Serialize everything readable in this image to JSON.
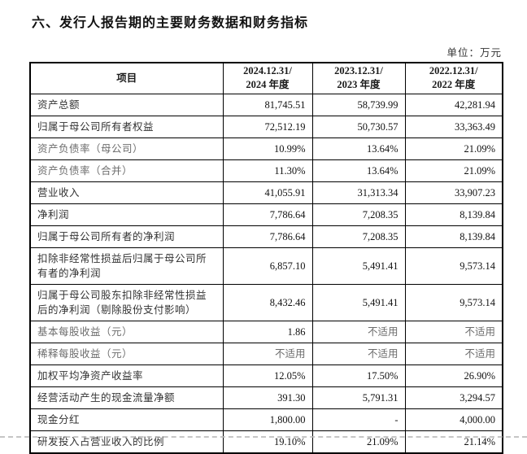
{
  "page": {
    "title": "六、发行人报告期的主要财务数据和财务指标",
    "unit_label": "单位：万元"
  },
  "table": {
    "header": {
      "item_label": "项目",
      "periods": [
        {
          "line1": "2024.12.31/",
          "line2": "2024 年度"
        },
        {
          "line1": "2023.12.31/",
          "line2": "2023 年度"
        },
        {
          "line1": "2022.12.31/",
          "line2": "2022 年度"
        }
      ]
    },
    "rows": [
      {
        "label": "资产总额",
        "values": [
          "81,745.51",
          "58,739.99",
          "42,281.94"
        ]
      },
      {
        "label": "归属于母公司所有者权益",
        "values": [
          "72,512.19",
          "50,730.57",
          "33,363.49"
        ]
      },
      {
        "label": "资产负债率（母公司）",
        "values": [
          "10.99%",
          "13.64%",
          "21.09%"
        ]
      },
      {
        "label": "资产负债率（合并）",
        "values": [
          "11.30%",
          "13.64%",
          "21.09%"
        ]
      },
      {
        "label": "营业收入",
        "values": [
          "41,055.91",
          "31,313.34",
          "33,907.23"
        ]
      },
      {
        "label": "净利润",
        "values": [
          "7,786.64",
          "7,208.35",
          "8,139.84"
        ]
      },
      {
        "label": "归属于母公司所有者的净利润",
        "values": [
          "7,786.64",
          "7,208.35",
          "8,139.84"
        ]
      },
      {
        "label": "扣除非经常性损益后归属于母公司所有者的净利润",
        "values": [
          "6,857.10",
          "5,491.41",
          "9,573.14"
        ]
      },
      {
        "label": "归属于母公司股东扣除非经常性损益后的净利润（剔除股份支付影响）",
        "values": [
          "8,432.46",
          "5,491.41",
          "9,573.14"
        ]
      },
      {
        "label": "基本每股收益（元）",
        "values": [
          "1.86",
          "不适用",
          "不适用"
        ]
      },
      {
        "label": "稀释每股收益（元）",
        "values": [
          "不适用",
          "不适用",
          "不适用"
        ]
      },
      {
        "label": "加权平均净资产收益率",
        "values": [
          "12.05%",
          "17.50%",
          "26.90%"
        ]
      },
      {
        "label": "经营活动产生的现金流量净额",
        "values": [
          "391.30",
          "5,791.31",
          "3,294.57"
        ]
      },
      {
        "label": "现金分红",
        "values": [
          "1,800.00",
          "-",
          "4,000.00"
        ]
      },
      {
        "label": "研发投入占营业收入的比例",
        "values": [
          "19.10%",
          "21.09%",
          "21.14%"
        ]
      }
    ]
  }
}
